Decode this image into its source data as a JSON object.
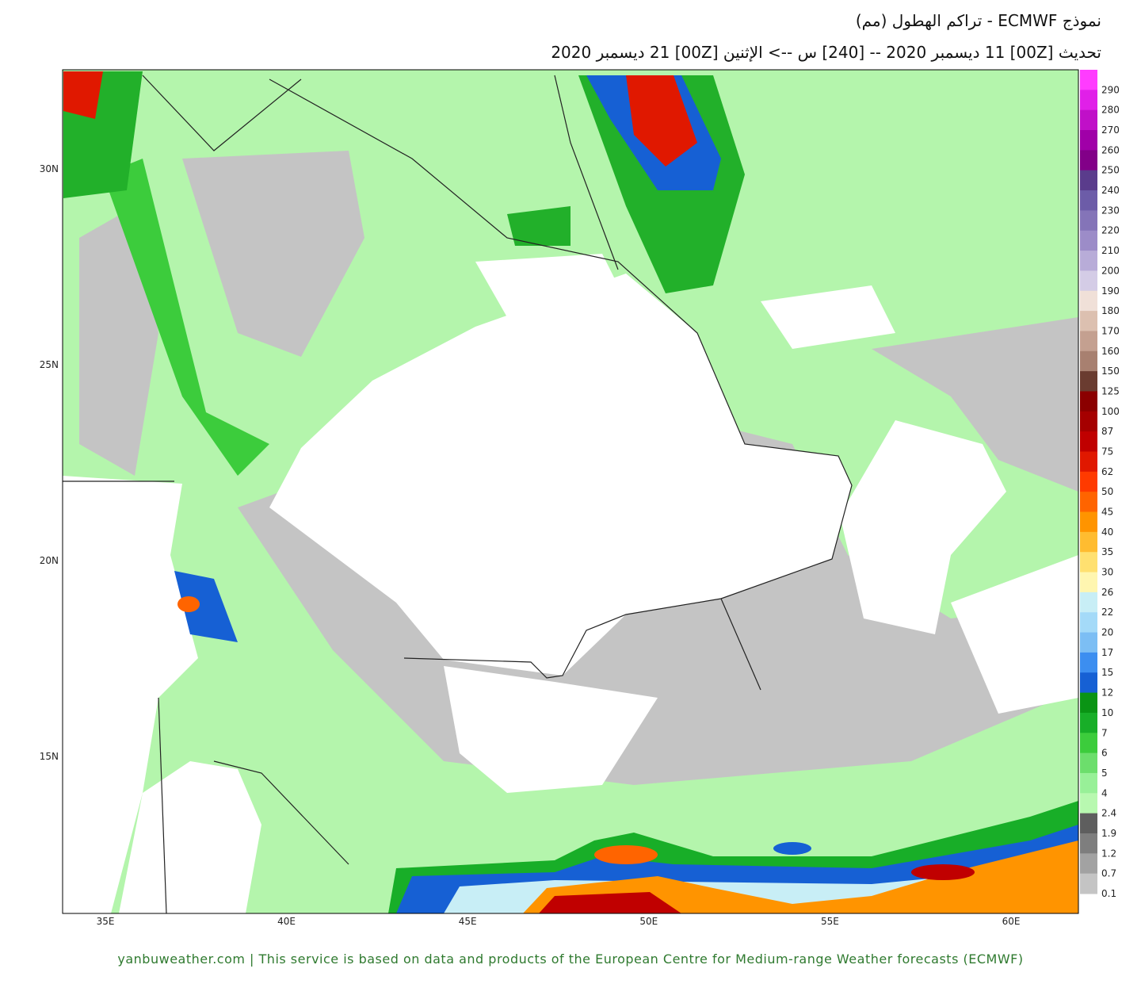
{
  "header": {
    "title": "نموذج ECMWF  - تراكم الهطول (مم)",
    "subtitle": "تحديث [00Z] 11 ديسمبر 2020 -- [240] س --> الإثنين [00Z] 21 ديسمبر 2020"
  },
  "map": {
    "lon_labels": [
      "35E",
      "40E",
      "45E",
      "50E",
      "55E",
      "60E"
    ],
    "lat_labels": [
      "30N",
      "25N",
      "20N",
      "15N"
    ]
  },
  "colorbar": {
    "labels": [
      "290",
      "280",
      "270",
      "260",
      "250",
      "240",
      "230",
      "220",
      "210",
      "200",
      "190",
      "180",
      "170",
      "160",
      "150",
      "125",
      "100",
      "87",
      "75",
      "62",
      "50",
      "45",
      "40",
      "35",
      "30",
      "26",
      "22",
      "20",
      "17",
      "15",
      "12",
      "10",
      "7",
      "6",
      "5",
      "4",
      "2.4",
      "1.9",
      "1.2",
      "0.7",
      "0.1"
    ],
    "colors": [
      "#ff3cff",
      "#e020e8",
      "#c010c8",
      "#a000a8",
      "#820088",
      "#5a3c8c",
      "#6c5ca8",
      "#8474b8",
      "#9c8cc8",
      "#b8acd8",
      "#d4cce6",
      "#f0e0d8",
      "#dcc0b0",
      "#c4a090",
      "#a88070",
      "#6a3c30",
      "#8b0000",
      "#a50000",
      "#c00000",
      "#e01800",
      "#ff3a00",
      "#ff6400",
      "#ff9400",
      "#ffbc30",
      "#ffe070",
      "#fff6b0",
      "#c8eef6",
      "#a4daf8",
      "#7cbef4",
      "#3c8ef0",
      "#1660d4",
      "#0a9414",
      "#18ae28",
      "#3ccc3c",
      "#6cde6c",
      "#98f098",
      "#b8f8b0",
      "#5e5e5e",
      "#7e7e7e",
      "#a2a2a2",
      "#c4c4c4"
    ]
  },
  "footer": "yanbuweather.com | This service is based on data and products of the European Centre for Medium-range Weather forecasts (ECMWF)"
}
